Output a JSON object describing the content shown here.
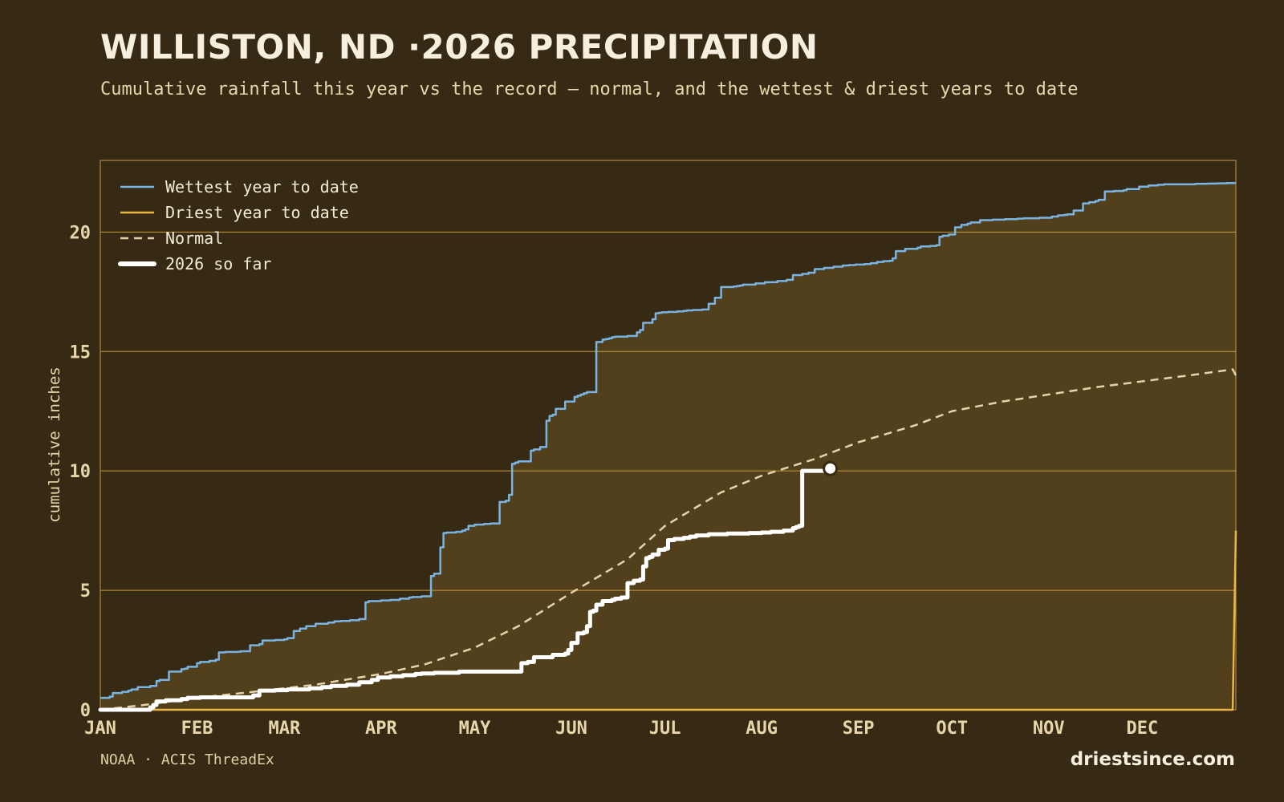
{
  "header": {
    "title": "WILLISTON, ND ·2026 PRECIPITATION",
    "subtitle": "Cumulative rainfall this year vs the record — normal, and the wettest & driest years to date"
  },
  "footer": {
    "source": "NOAA · ACIS ThreadEx",
    "brand": "driestsince.com"
  },
  "colors": {
    "background": "#372a14",
    "band_fill": "#52401d",
    "grid": "#c79a3e",
    "wettest": "#7ab4e2",
    "driest": "#e9b544",
    "normal": "#e4d3ab",
    "current": "#ffffff",
    "tick_text": "#e8d6ab"
  },
  "chart_data": {
    "type": "line",
    "title": "WILLISTON, ND ·2026 PRECIPITATION",
    "ylabel": "cumulative inches",
    "xlabel": "",
    "x_unit": "day of year",
    "xlim": [
      1,
      365
    ],
    "ylim": [
      0,
      23
    ],
    "yticks": [
      0,
      5,
      10,
      15,
      20
    ],
    "grid": true,
    "legend_position": "top-left",
    "month_labels": [
      "JAN",
      "FEB",
      "MAR",
      "APR",
      "MAY",
      "JUN",
      "JUL",
      "AUG",
      "SEP",
      "OCT",
      "NOV",
      "DEC"
    ],
    "month_start_days": [
      1,
      32,
      60,
      91,
      121,
      152,
      182,
      213,
      244,
      274,
      305,
      335
    ],
    "series": [
      {
        "name": "Wettest year to date",
        "key": "wettest",
        "style": "solid",
        "x": [
          1,
          4,
          5,
          8,
          10,
          11,
          13,
          17,
          19,
          20,
          23,
          27,
          28,
          29,
          32,
          33,
          36,
          38,
          39,
          41,
          45,
          46,
          49,
          52,
          53,
          57,
          60,
          61,
          63,
          65,
          67,
          70,
          74,
          76,
          78,
          81,
          84,
          86,
          87,
          91,
          94,
          97,
          100,
          101,
          104,
          107,
          108,
          110,
          111,
          112,
          115,
          117,
          118,
          119,
          121,
          124,
          126,
          129,
          131,
          132,
          133,
          134,
          135,
          139,
          140,
          142,
          144,
          145,
          146,
          147,
          150,
          153,
          154,
          155,
          156,
          157,
          160,
          162,
          163,
          164,
          165,
          166,
          170,
          173,
          174,
          175,
          178,
          179,
          180,
          181,
          183,
          186,
          188,
          189,
          191,
          194,
          196,
          198,
          200,
          204,
          205,
          206,
          207,
          211,
          214,
          218,
          221,
          223,
          226,
          228,
          230,
          233,
          236,
          239,
          241,
          243,
          246,
          248,
          250,
          252,
          254,
          255,
          256,
          259,
          263,
          264,
          267,
          269,
          270,
          271,
          273,
          275,
          277,
          279,
          280,
          283,
          287,
          291,
          295,
          297,
          302,
          306,
          308,
          310,
          311,
          313,
          316,
          318,
          320,
          321,
          323,
          326,
          329,
          330,
          334,
          337,
          340,
          342,
          346,
          352,
          356,
          359,
          362,
          365
        ],
        "y": [
          0.5,
          0.55,
          0.7,
          0.75,
          0.8,
          0.85,
          0.95,
          1.0,
          1.2,
          1.25,
          1.6,
          1.7,
          1.72,
          1.8,
          1.95,
          2.0,
          2.05,
          2.1,
          2.4,
          2.42,
          2.43,
          2.45,
          2.7,
          2.75,
          2.9,
          2.92,
          2.95,
          3.0,
          3.3,
          3.4,
          3.5,
          3.6,
          3.65,
          3.7,
          3.72,
          3.75,
          3.8,
          4.5,
          4.55,
          4.58,
          4.6,
          4.65,
          4.7,
          4.72,
          4.75,
          5.6,
          5.7,
          6.8,
          7.4,
          7.42,
          7.45,
          7.5,
          7.55,
          7.7,
          7.75,
          7.78,
          7.8,
          8.7,
          8.75,
          9.0,
          10.3,
          10.35,
          10.4,
          10.85,
          10.9,
          11.0,
          12.1,
          12.3,
          12.35,
          12.6,
          12.9,
          13.1,
          13.15,
          13.2,
          13.25,
          13.3,
          15.4,
          15.5,
          15.52,
          15.55,
          15.6,
          15.62,
          15.65,
          15.8,
          15.9,
          16.2,
          16.35,
          16.6,
          16.62,
          16.64,
          16.66,
          16.68,
          16.7,
          16.72,
          16.74,
          16.76,
          17.0,
          17.25,
          17.7,
          17.72,
          17.74,
          17.76,
          17.8,
          17.85,
          17.9,
          17.95,
          18.0,
          18.2,
          18.25,
          18.3,
          18.45,
          18.5,
          18.55,
          18.6,
          18.62,
          18.64,
          18.66,
          18.7,
          18.75,
          18.78,
          18.8,
          18.9,
          19.2,
          19.3,
          19.35,
          19.4,
          19.42,
          19.45,
          19.8,
          19.85,
          19.9,
          20.2,
          20.3,
          20.35,
          20.4,
          20.5,
          20.52,
          20.54,
          20.56,
          20.58,
          20.6,
          20.65,
          20.7,
          20.72,
          20.74,
          20.9,
          21.2,
          21.25,
          21.3,
          21.35,
          21.7,
          21.72,
          21.75,
          21.8,
          21.9,
          21.95,
          21.98,
          22.0,
          22.0,
          22.02,
          22.03,
          22.04,
          22.05,
          22.05
        ],
        "stepped": true
      },
      {
        "name": "Driest year to date",
        "key": "driest",
        "style": "solid",
        "x": [
          1,
          364,
          365
        ],
        "y": [
          0,
          0,
          7.5
        ]
      },
      {
        "name": "Normal",
        "key": "normal",
        "style": "dashed",
        "x": [
          1,
          15,
          32,
          50,
          70,
          91,
          105,
          121,
          135,
          152,
          170,
          182,
          200,
          213,
          230,
          244,
          262,
          274,
          290,
          305,
          320,
          335,
          350,
          364,
          365
        ],
        "y": [
          0,
          0.2,
          0.5,
          0.75,
          1.05,
          1.5,
          1.9,
          2.6,
          3.5,
          4.9,
          6.3,
          7.7,
          9.1,
          9.8,
          10.5,
          11.2,
          11.9,
          12.5,
          12.9,
          13.2,
          13.5,
          13.75,
          14.0,
          14.25,
          14.0
        ]
      },
      {
        "name": "2026 so far",
        "key": "current",
        "style": "thick",
        "x": [
          1,
          15,
          17,
          18,
          19,
          22,
          27,
          29,
          33,
          40,
          46,
          48,
          50,
          52,
          57,
          61,
          68,
          72,
          75,
          80,
          84,
          88,
          90,
          94,
          98,
          102,
          104,
          108,
          112,
          116,
          122,
          128,
          134,
          136,
          138,
          140,
          146,
          150,
          151,
          152,
          154,
          156,
          157,
          158,
          159,
          160,
          162,
          165,
          166,
          168,
          170,
          172,
          174,
          175,
          176,
          177,
          178,
          180,
          182,
          183,
          185,
          188,
          190,
          192,
          196,
          202,
          209,
          213,
          216,
          220,
          223,
          224,
          225,
          226,
          227,
          234,
          235
        ],
        "y": [
          0,
          0,
          0.1,
          0.2,
          0.35,
          0.4,
          0.45,
          0.5,
          0.52,
          0.52,
          0.52,
          0.52,
          0.6,
          0.8,
          0.82,
          0.85,
          0.9,
          0.95,
          1.0,
          1.05,
          1.15,
          1.25,
          1.35,
          1.4,
          1.45,
          1.5,
          1.52,
          1.55,
          1.55,
          1.6,
          1.6,
          1.6,
          1.6,
          1.95,
          2.0,
          2.2,
          2.3,
          2.35,
          2.5,
          2.8,
          3.2,
          3.25,
          3.5,
          4.1,
          4.15,
          4.4,
          4.55,
          4.6,
          4.65,
          4.7,
          5.3,
          5.4,
          5.45,
          6.0,
          6.35,
          6.4,
          6.5,
          6.7,
          6.75,
          7.1,
          7.15,
          7.2,
          7.25,
          7.3,
          7.35,
          7.38,
          7.4,
          7.42,
          7.45,
          7.5,
          7.6,
          7.65,
          7.7,
          10.0,
          10.0,
          10.05,
          10.1
        ],
        "stepped": true,
        "end_marker": true
      }
    ]
  }
}
